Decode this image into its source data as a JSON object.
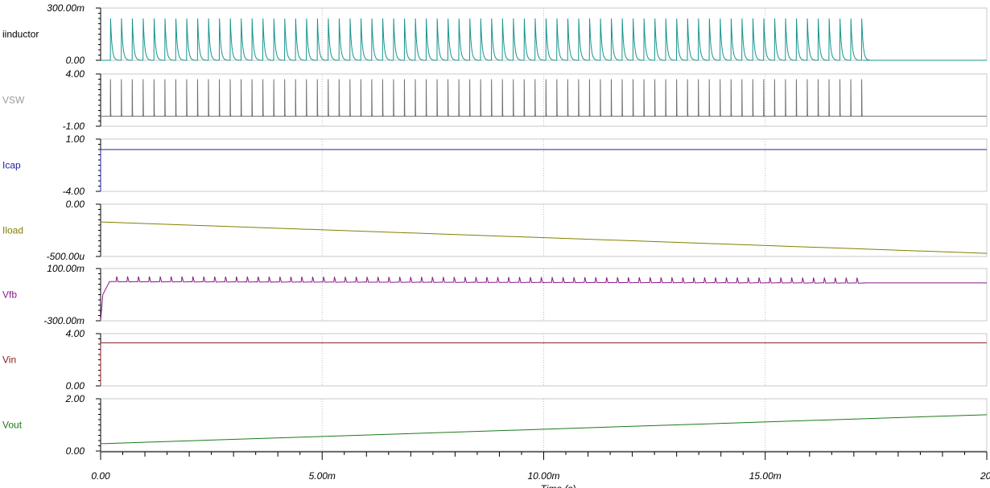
{
  "chart_data": {
    "type": "line",
    "x_ticks": [
      "0.00",
      "5.00m",
      "10.00m",
      "15.00m",
      "20"
    ],
    "x_range": [
      0,
      0.02
    ],
    "x_label": "Time (s)",
    "grid": true,
    "panels": [
      {
        "name": "iinductor",
        "label_color": "#000000",
        "color": "#16948e",
        "y_top": "300.00m",
        "y_bottom": "0.00",
        "ylim": [
          0,
          0.3
        ],
        "waveform": "pulse_train",
        "baseline": 0.0,
        "pulse_peak": 0.24,
        "pulse_count": 70,
        "switching_stops_at": 0.0172
      },
      {
        "name": "VSW",
        "label_color": "#9a9a9a",
        "color": "#6e6e6e",
        "y_top": "4.00",
        "y_bottom": "-1.00",
        "ylim": [
          -1,
          4
        ],
        "waveform": "spike_train",
        "baseline": -0.05,
        "pulse_peak": 3.5,
        "pulse_count": 70,
        "switching_stops_at": 0.0172
      },
      {
        "name": "Icap",
        "label_color": "#1f1fa0",
        "color": "#1f1fa0",
        "y_top": "1.00",
        "y_bottom": "-4.00",
        "ylim": [
          -4,
          1
        ],
        "waveform": "flat",
        "start_value": -4.0,
        "value": 0.0
      },
      {
        "name": "Iload",
        "label_color": "#808000",
        "color": "#808000",
        "y_top": "0.00",
        "y_bottom": "-500.00u",
        "ylim": [
          -0.0005,
          0
        ],
        "waveform": "linear",
        "start_value": -0.00017,
        "end_value": -0.00047
      },
      {
        "name": "Vfb",
        "label_color": "#8b1a8b",
        "color": "#8b1a8b",
        "y_top": "100.00m",
        "y_bottom": "-300.00m",
        "ylim": [
          -0.3,
          0.1
        ],
        "waveform": "ripple",
        "start_value": -0.3,
        "baseline": 0.0,
        "pulse_peak": 0.04,
        "pulse_count": 70,
        "switching_stops_at": 0.0172
      },
      {
        "name": "Vin",
        "label_color": "#8b1a1a",
        "color": "#8b1a1a",
        "y_top": "4.00",
        "y_bottom": "0.00",
        "ylim": [
          0,
          4
        ],
        "waveform": "flat",
        "start_value": 0.0,
        "value": 3.3
      },
      {
        "name": "Vout",
        "label_color": "#1a7a1a",
        "color": "#1a7a1a",
        "y_top": "2.00",
        "y_bottom": "0.00",
        "ylim": [
          0,
          2
        ],
        "waveform": "linear",
        "start_value": 0.28,
        "end_value": 1.39
      }
    ]
  }
}
